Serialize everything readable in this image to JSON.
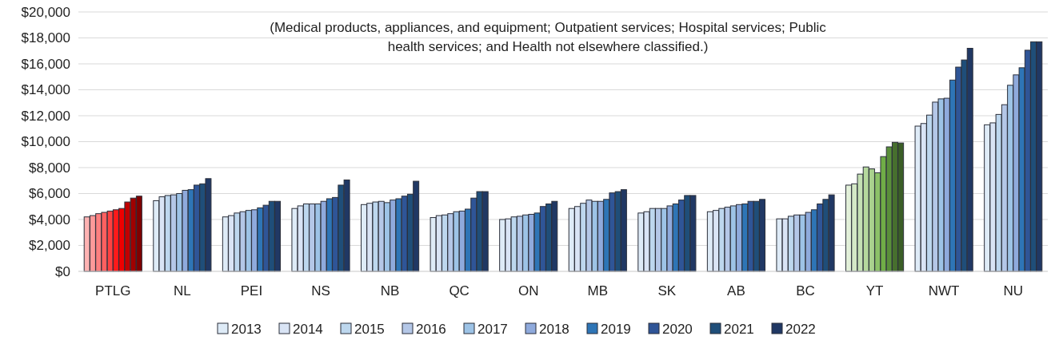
{
  "chart_data": {
    "type": "bar",
    "categories": [
      "PTLG",
      "NL",
      "PEI",
      "NS",
      "NB",
      "QC",
      "ON",
      "MB",
      "SK",
      "AB",
      "BC",
      "YT",
      "NWT",
      "NU"
    ],
    "annotations": [
      "(Medical products, appliances, and equipment; Outpatient services; Hospital services; Public health services; and Health not elsewhere classified.)"
    ],
    "series": [
      {
        "name": "2013",
        "color": "#deebf7",
        "colors": [
          "#ffb3b3",
          "#deebf7",
          "#deebf7",
          "#deebf7",
          "#deebf7",
          "#deebf7",
          "#deebf7",
          "#deebf7",
          "#deebf7",
          "#deebf7",
          "#deebf7",
          "#e2f0d9",
          "#deebf7",
          "#deebf7"
        ],
        "values": [
          4200,
          5450,
          4200,
          4850,
          5150,
          4150,
          4000,
          4850,
          4500,
          4600,
          4050,
          6650,
          11200,
          11300
        ]
      },
      {
        "name": "2014",
        "color": "#d9e4f5",
        "colors": [
          "#ff9999",
          "#d9e4f5",
          "#d9e4f5",
          "#d9e4f5",
          "#d9e4f5",
          "#d9e4f5",
          "#d9e4f5",
          "#d9e4f5",
          "#d9e4f5",
          "#d9e4f5",
          "#d9e4f5",
          "#d4e8c6",
          "#d9e4f5",
          "#d9e4f5"
        ],
        "values": [
          4300,
          5750,
          4300,
          5050,
          5250,
          4300,
          4050,
          5000,
          4600,
          4700,
          4050,
          6750,
          11400,
          11450
        ]
      },
      {
        "name": "2015",
        "color": "#bdd7ee",
        "colors": [
          "#ff7f7f",
          "#bdd7ee",
          "#bdd7ee",
          "#bdd7ee",
          "#bdd7ee",
          "#bdd7ee",
          "#bdd7ee",
          "#bdd7ee",
          "#bdd7ee",
          "#bdd7ee",
          "#bdd7ee",
          "#c5e0b4",
          "#bdd7ee",
          "#bdd7ee"
        ],
        "values": [
          4450,
          5850,
          4500,
          5200,
          5350,
          4350,
          4200,
          5250,
          4850,
          4850,
          4250,
          7500,
          12050,
          12100
        ]
      },
      {
        "name": "2016",
        "color": "#b4c7e7",
        "colors": [
          "#ff6060",
          "#b4c7e7",
          "#b4c7e7",
          "#b4c7e7",
          "#b4c7e7",
          "#b4c7e7",
          "#b4c7e7",
          "#b4c7e7",
          "#b4c7e7",
          "#b4c7e7",
          "#b4c7e7",
          "#b5d89d",
          "#b4c7e7",
          "#b4c7e7"
        ],
        "values": [
          4550,
          5900,
          4600,
          5200,
          5400,
          4450,
          4250,
          5500,
          4850,
          4950,
          4350,
          8050,
          13050,
          12850
        ]
      },
      {
        "name": "2017",
        "color": "#9dc3e6",
        "colors": [
          "#ff4040",
          "#9dc3e6",
          "#9dc3e6",
          "#9dc3e6",
          "#9dc3e6",
          "#9dc3e6",
          "#9dc3e6",
          "#9dc3e6",
          "#9dc3e6",
          "#9dc3e6",
          "#9dc3e6",
          "#a9d18e",
          "#9dc3e6",
          "#9dc3e6"
        ],
        "values": [
          4650,
          6000,
          4700,
          5200,
          5300,
          4600,
          4350,
          5400,
          4850,
          5050,
          4350,
          7900,
          13300,
          14350
        ]
      },
      {
        "name": "2018",
        "color": "#8faadc",
        "colors": [
          "#ff1a1a",
          "#8faadc",
          "#8faadc",
          "#8faadc",
          "#8faadc",
          "#8faadc",
          "#8faadc",
          "#8faadc",
          "#8faadc",
          "#8faadc",
          "#8faadc",
          "#8cc168",
          "#8faadc",
          "#8faadc"
        ],
        "values": [
          4750,
          6250,
          4750,
          5400,
          5500,
          4650,
          4400,
          5400,
          5050,
          5150,
          4550,
          7600,
          13350,
          15150
        ]
      },
      {
        "name": "2019",
        "color": "#2e75b6",
        "colors": [
          "#ee0000",
          "#2e75b6",
          "#2e75b6",
          "#2e75b6",
          "#2e75b6",
          "#2e75b6",
          "#2e75b6",
          "#2e75b6",
          "#2e75b6",
          "#2e75b6",
          "#2e75b6",
          "#70ad47",
          "#2e75b6",
          "#2e75b6"
        ],
        "values": [
          4850,
          6300,
          4900,
          5600,
          5600,
          4800,
          4500,
          5550,
          5200,
          5200,
          4750,
          8850,
          14750,
          15700
        ]
      },
      {
        "name": "2020",
        "color": "#2f5597",
        "colors": [
          "#c00000",
          "#2f5597",
          "#2f5597",
          "#2f5597",
          "#2f5597",
          "#2f5597",
          "#2f5597",
          "#2f5597",
          "#2f5597",
          "#2f5597",
          "#2f5597",
          "#5a8f3a",
          "#2f5597",
          "#2f5597"
        ],
        "values": [
          5350,
          6650,
          5100,
          5700,
          5800,
          5650,
          5000,
          6050,
          5500,
          5400,
          5200,
          9600,
          15750,
          17050
        ]
      },
      {
        "name": "2021",
        "color": "#1f4e79",
        "colors": [
          "#a00000",
          "#1f4e79",
          "#1f4e79",
          "#1f4e79",
          "#1f4e79",
          "#1f4e79",
          "#1f4e79",
          "#1f4e79",
          "#1f4e79",
          "#1f4e79",
          "#1f4e79",
          "#476f2e",
          "#1f4e79",
          "#1f4e79"
        ],
        "values": [
          5650,
          6750,
          5400,
          6650,
          5950,
          6150,
          5200,
          6150,
          5850,
          5400,
          5550,
          9950,
          16300,
          17700
        ]
      },
      {
        "name": "2022",
        "color": "#203864",
        "colors": [
          "#800000",
          "#203864",
          "#203864",
          "#203864",
          "#203864",
          "#203864",
          "#203864",
          "#203864",
          "#203864",
          "#203864",
          "#203864",
          "#3b5e27",
          "#203864",
          "#203864"
        ],
        "values": [
          5800,
          7150,
          5400,
          7050,
          6950,
          6150,
          5400,
          6300,
          5850,
          5550,
          5900,
          9900,
          17200,
          17700
        ]
      }
    ],
    "ylim": [
      0,
      20000
    ],
    "yticks": [
      {
        "value": 0,
        "label": "$0"
      },
      {
        "value": 2000,
        "label": "$2,000"
      },
      {
        "value": 4000,
        "label": "$4,000"
      },
      {
        "value": 6000,
        "label": "$6,000"
      },
      {
        "value": 8000,
        "label": "$8,000"
      },
      {
        "value": 10000,
        "label": "$10,000"
      },
      {
        "value": 12000,
        "label": "$12,000"
      },
      {
        "value": 14000,
        "label": "$14,000"
      },
      {
        "value": 16000,
        "label": "$16,000"
      },
      {
        "value": 18000,
        "label": "$18,000"
      },
      {
        "value": 20000,
        "label": "$20,000"
      }
    ],
    "grid": true,
    "legend": "bottom"
  }
}
